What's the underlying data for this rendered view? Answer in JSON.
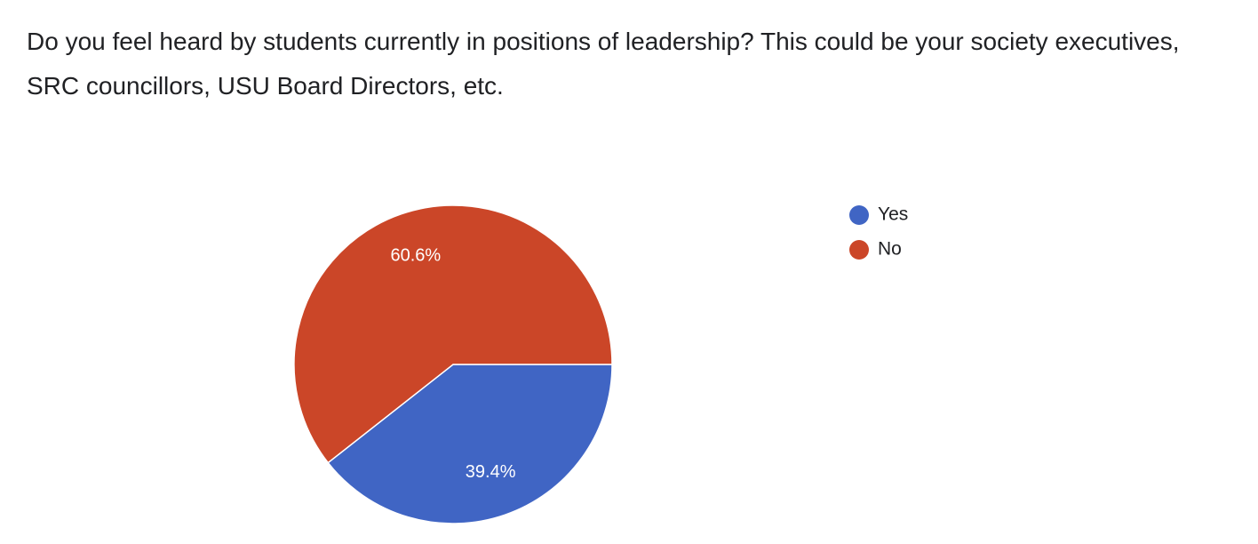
{
  "chart_data": {
    "type": "pie",
    "title": "Do you feel heard by students currently in positions of leadership? This could be your society executives, SRC councillors, USU Board Directors, etc.",
    "categories": [
      "Yes",
      "No"
    ],
    "values": [
      39.4,
      60.6
    ],
    "value_labels": [
      "39.4%",
      "60.6%"
    ],
    "colors": [
      "#4065c4",
      "#cb4628"
    ],
    "legend": "right"
  }
}
